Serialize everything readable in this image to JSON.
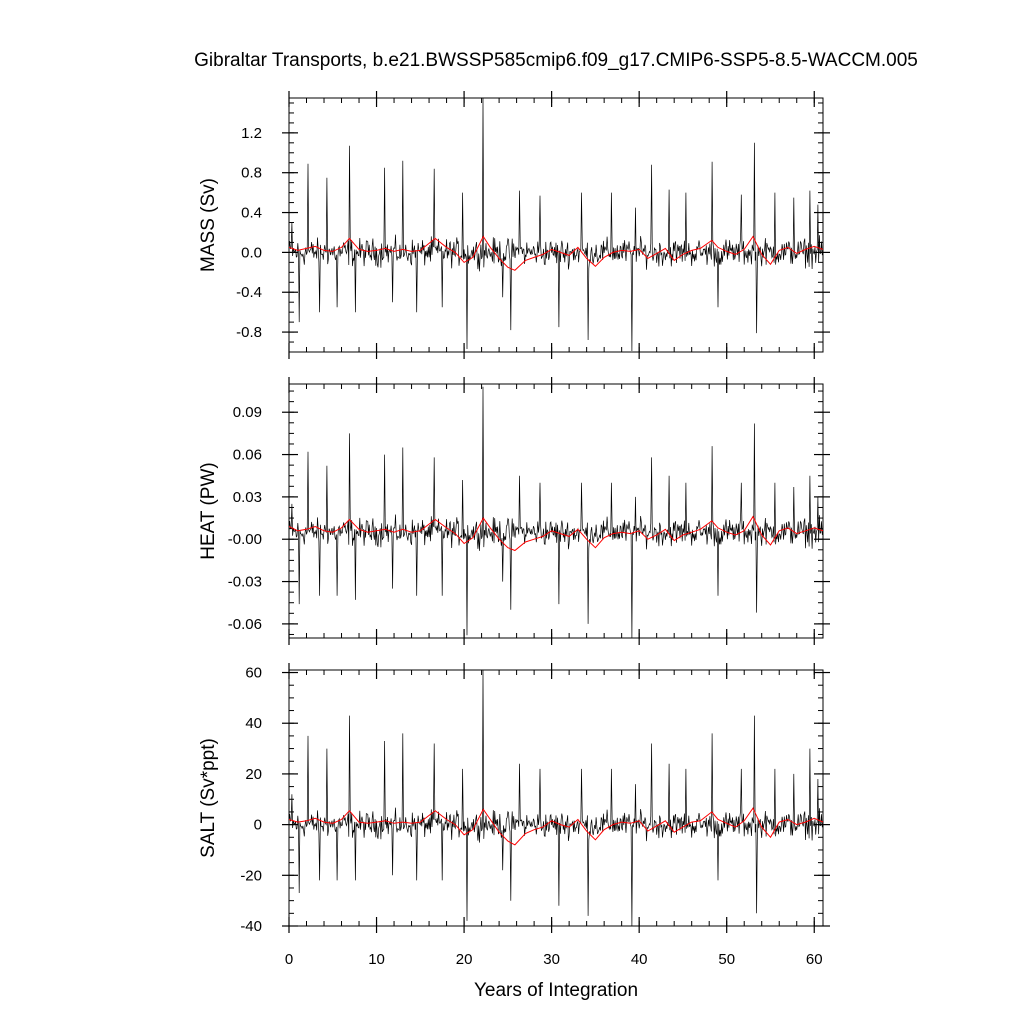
{
  "title": "Gibraltar Transports, b.e21.BWSSP585cmip6.f09_g17.CMIP6-SSP5-8.5-WACCM.005",
  "xlabel": "Years of Integration",
  "colors": {
    "raw": "#000000",
    "smoothed": "#ff0000",
    "frame": "#000000"
  },
  "chart_data": [
    {
      "type": "line",
      "panel": "mass",
      "ylabel": "MASS (Sv)",
      "xlim": [
        0,
        61
      ],
      "ylim": [
        -1.0,
        1.55
      ],
      "yticks": [
        -0.8,
        -0.4,
        0.0,
        0.4,
        0.8,
        1.2
      ],
      "ytick_labels": [
        "-0.8",
        "-0.4",
        "0.0",
        "0.4",
        "0.8",
        "1.2"
      ],
      "xticks": [
        0,
        10,
        20,
        30,
        40,
        50,
        60
      ],
      "grid": false,
      "series": [
        {
          "style": "monthly",
          "color": "#000000",
          "base": 0.0,
          "amp": 0.2,
          "spikes": [
            [
              0.3,
              0.3
            ],
            [
              1.2,
              -0.7
            ],
            [
              2.2,
              0.89
            ],
            [
              3.5,
              -0.6
            ],
            [
              4.3,
              0.75
            ],
            [
              5.5,
              -0.55
            ],
            [
              6.9,
              1.07
            ],
            [
              7.6,
              -0.6
            ],
            [
              10.9,
              0.85
            ],
            [
              11.8,
              -0.5
            ],
            [
              13.0,
              0.92
            ],
            [
              14.6,
              -0.6
            ],
            [
              16.6,
              0.84
            ],
            [
              17.5,
              -0.55
            ],
            [
              19.8,
              0.6
            ],
            [
              20.3,
              -0.97
            ],
            [
              22.2,
              1.55
            ],
            [
              24.4,
              -0.45
            ],
            [
              25.3,
              -0.78
            ],
            [
              26.3,
              0.62
            ],
            [
              28.7,
              0.57
            ],
            [
              30.8,
              -0.75
            ],
            [
              33.4,
              0.6
            ],
            [
              34.2,
              -0.88
            ],
            [
              36.8,
              0.6
            ],
            [
              39.2,
              -0.99
            ],
            [
              39.6,
              0.45
            ],
            [
              41.4,
              0.88
            ],
            [
              43.4,
              0.63
            ],
            [
              45.3,
              0.6
            ],
            [
              48.3,
              0.91
            ],
            [
              49.0,
              -0.55
            ],
            [
              51.7,
              0.58
            ],
            [
              53.2,
              1.1
            ],
            [
              53.4,
              -0.81
            ],
            [
              55.5,
              0.6
            ],
            [
              57.7,
              0.55
            ],
            [
              59.5,
              0.62
            ],
            [
              60.4,
              0.48
            ]
          ]
        },
        {
          "style": "smoothed",
          "color": "#ff0000",
          "x": [
            0,
            1,
            2,
            3,
            4,
            5,
            6,
            6.9,
            8,
            9,
            10,
            11,
            12,
            13,
            14,
            15,
            16.7,
            18,
            19,
            20,
            21,
            22.2,
            23,
            24,
            25,
            25.8,
            27,
            28,
            29,
            30,
            31,
            32,
            33,
            34,
            35,
            36,
            37,
            38,
            39,
            40,
            41,
            42,
            43,
            44,
            45,
            46,
            47,
            48.3,
            49,
            50,
            51,
            52,
            53,
            54,
            55,
            56,
            57,
            58,
            59,
            60,
            61
          ],
          "values": [
            0.05,
            0.02,
            0.04,
            0.06,
            0.02,
            0.01,
            0.05,
            0.14,
            0.03,
            0.01,
            0.02,
            0.04,
            0.01,
            0.03,
            0.01,
            0.02,
            0.14,
            0.05,
            0.0,
            -0.1,
            -0.05,
            0.16,
            0.05,
            -0.06,
            -0.15,
            -0.18,
            -0.08,
            -0.05,
            -0.02,
            0.03,
            0.0,
            -0.03,
            0.05,
            -0.06,
            -0.14,
            -0.05,
            0.0,
            0.02,
            0.01,
            0.03,
            -0.06,
            -0.01,
            0.04,
            -0.08,
            -0.02,
            0.02,
            0.04,
            0.12,
            0.05,
            0.01,
            -0.02,
            0.03,
            0.16,
            -0.02,
            -0.12,
            0.02,
            0.05,
            -0.01,
            0.03,
            0.06,
            0.03
          ]
        }
      ]
    },
    {
      "type": "line",
      "panel": "heat",
      "ylabel": "HEAT (PW)",
      "xlim": [
        0,
        61
      ],
      "ylim": [
        -0.07,
        0.11
      ],
      "yticks": [
        -0.06,
        -0.03,
        0.0,
        0.03,
        0.06,
        0.09
      ],
      "ytick_labels": [
        "-0.06",
        "-0.03",
        "-0.00",
        "0.03",
        "0.06",
        "0.09"
      ],
      "xticks": [
        0,
        10,
        20,
        30,
        40,
        50,
        60
      ],
      "grid": false,
      "series": [
        {
          "style": "monthly",
          "color": "#000000",
          "base": 0.005,
          "amp": 0.014,
          "spikes": [
            [
              0.3,
              0.025
            ],
            [
              1.2,
              -0.046
            ],
            [
              2.2,
              0.062
            ],
            [
              3.5,
              -0.04
            ],
            [
              4.3,
              0.052
            ],
            [
              5.5,
              -0.04
            ],
            [
              6.9,
              0.075
            ],
            [
              7.6,
              -0.043
            ],
            [
              10.9,
              0.06
            ],
            [
              11.8,
              -0.035
            ],
            [
              13.0,
              0.065
            ],
            [
              14.6,
              -0.04
            ],
            [
              16.6,
              0.058
            ],
            [
              17.5,
              -0.04
            ],
            [
              19.8,
              0.042
            ],
            [
              20.3,
              -0.068
            ],
            [
              22.2,
              0.108
            ],
            [
              24.4,
              -0.03
            ],
            [
              25.3,
              -0.05
            ],
            [
              26.3,
              0.045
            ],
            [
              28.7,
              0.04
            ],
            [
              30.8,
              -0.046
            ],
            [
              33.4,
              0.04
            ],
            [
              34.2,
              -0.06
            ],
            [
              36.8,
              0.04
            ],
            [
              39.2,
              -0.07
            ],
            [
              39.6,
              0.03
            ],
            [
              41.4,
              0.058
            ],
            [
              43.4,
              0.045
            ],
            [
              45.3,
              0.04
            ],
            [
              48.3,
              0.066
            ],
            [
              49.0,
              -0.04
            ],
            [
              51.7,
              0.04
            ],
            [
              53.2,
              0.082
            ],
            [
              53.4,
              -0.052
            ],
            [
              55.5,
              0.04
            ],
            [
              57.7,
              0.037
            ],
            [
              59.5,
              0.045
            ],
            [
              60.4,
              0.03
            ]
          ]
        },
        {
          "style": "smoothed",
          "color": "#ff0000",
          "x": [
            0,
            1,
            2,
            3,
            4,
            5,
            6,
            6.9,
            8,
            9,
            10,
            11,
            12,
            13,
            14,
            15,
            16.7,
            18,
            19,
            20,
            21,
            22.2,
            23,
            24,
            25,
            25.8,
            27,
            28,
            29,
            30,
            31,
            32,
            33,
            34,
            35,
            36,
            37,
            38,
            39,
            40,
            41,
            42,
            43,
            44,
            45,
            46,
            47,
            48.3,
            49,
            50,
            51,
            52,
            53,
            54,
            55,
            56,
            57,
            58,
            59,
            60,
            61
          ],
          "values": [
            0.009,
            0.006,
            0.007,
            0.009,
            0.006,
            0.005,
            0.008,
            0.014,
            0.007,
            0.005,
            0.006,
            0.007,
            0.005,
            0.007,
            0.005,
            0.006,
            0.014,
            0.008,
            0.004,
            -0.003,
            0.001,
            0.015,
            0.008,
            0.0,
            -0.006,
            -0.008,
            -0.002,
            0.0,
            0.002,
            0.006,
            0.004,
            0.002,
            0.007,
            0.0,
            -0.006,
            0.001,
            0.004,
            0.005,
            0.004,
            0.006,
            0.0,
            0.003,
            0.007,
            -0.001,
            0.003,
            0.005,
            0.007,
            0.013,
            0.008,
            0.005,
            0.003,
            0.006,
            0.016,
            0.003,
            -0.004,
            0.006,
            0.008,
            0.004,
            0.006,
            0.008,
            0.006
          ]
        }
      ]
    },
    {
      "type": "line",
      "panel": "salt",
      "ylabel": "SALT (Sv*ppt)",
      "xlim": [
        0,
        61
      ],
      "ylim": [
        -40,
        61
      ],
      "yticks": [
        -40,
        -20,
        0,
        20,
        40,
        60
      ],
      "ytick_labels": [
        "-40",
        "-20",
        "0",
        "20",
        "40",
        "60"
      ],
      "xticks": [
        0,
        10,
        20,
        30,
        40,
        50,
        60
      ],
      "xtick_labels": [
        "0",
        "10",
        "20",
        "30",
        "40",
        "50",
        "60"
      ],
      "grid": false,
      "series": [
        {
          "style": "monthly",
          "color": "#000000",
          "base": 0.0,
          "amp": 7.5,
          "spikes": [
            [
              0.3,
              12
            ],
            [
              1.2,
              -27
            ],
            [
              2.2,
              35
            ],
            [
              3.5,
              -22
            ],
            [
              4.3,
              30
            ],
            [
              5.5,
              -22
            ],
            [
              6.9,
              43
            ],
            [
              7.6,
              -22
            ],
            [
              10.9,
              33
            ],
            [
              11.8,
              -20
            ],
            [
              13.0,
              36
            ],
            [
              14.6,
              -22
            ],
            [
              16.6,
              32
            ],
            [
              17.5,
              -22
            ],
            [
              19.8,
              22
            ],
            [
              20.3,
              -38
            ],
            [
              22.2,
              61
            ],
            [
              24.4,
              -18
            ],
            [
              25.3,
              -30
            ],
            [
              26.3,
              24
            ],
            [
              28.7,
              22
            ],
            [
              30.8,
              -32
            ],
            [
              33.4,
              22
            ],
            [
              34.2,
              -36
            ],
            [
              36.8,
              22
            ],
            [
              39.2,
              -40
            ],
            [
              39.6,
              16
            ],
            [
              41.4,
              32
            ],
            [
              43.4,
              24
            ],
            [
              45.3,
              22
            ],
            [
              48.3,
              36
            ],
            [
              49.0,
              -22
            ],
            [
              51.7,
              22
            ],
            [
              53.2,
              43
            ],
            [
              53.4,
              -35
            ],
            [
              55.5,
              22
            ],
            [
              57.7,
              20
            ],
            [
              59.5,
              30
            ],
            [
              60.4,
              18
            ]
          ]
        },
        {
          "style": "smoothed",
          "color": "#ff0000",
          "x": [
            0,
            1,
            2,
            3,
            4,
            5,
            6,
            6.9,
            8,
            9,
            10,
            11,
            12,
            13,
            14,
            15,
            16.7,
            18,
            19,
            20,
            21,
            22.2,
            23,
            24,
            25,
            25.8,
            27,
            28,
            29,
            30,
            31,
            32,
            33,
            34,
            35,
            36,
            37,
            38,
            39,
            40,
            41,
            42,
            43,
            44,
            45,
            46,
            47,
            48.3,
            49,
            50,
            51,
            52,
            53,
            54,
            55,
            56,
            57,
            58,
            59,
            60,
            61
          ],
          "values": [
            2,
            1,
            1.5,
            2.5,
            1,
            0.5,
            2,
            5.5,
            1,
            0.5,
            1,
            1.5,
            0.5,
            1,
            0.5,
            1,
            5.5,
            2,
            0,
            -4,
            -2,
            6,
            2,
            -3,
            -6.5,
            -8,
            -3.5,
            -2,
            -1,
            1.5,
            0,
            -1,
            2,
            -2.5,
            -6,
            -2,
            0,
            1,
            0.5,
            1.5,
            -2.5,
            -0.5,
            1.5,
            -3,
            -1,
            1,
            1.5,
            5,
            2,
            0.5,
            -1,
            1.5,
            6.5,
            -1,
            -5,
            1,
            2,
            0,
            1,
            2.5,
            1
          ]
        }
      ]
    }
  ]
}
